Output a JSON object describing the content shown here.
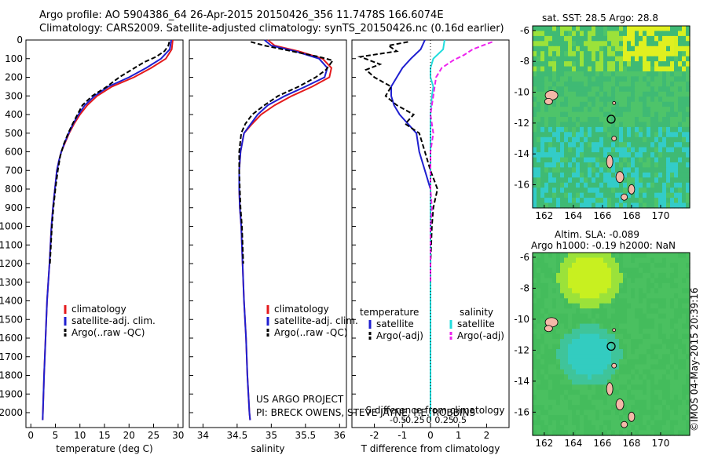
{
  "header": {
    "line1": "Argo profile: AO 5904386_64 26-Apr-2015 20150426_356 11.7478S 166.6074E",
    "line2": "Climatology: CARS2009. Satellite-adjusted climatology: synTS_20150426.nc (0.16d earlier)"
  },
  "stamp": "©IMOS 04-May-2015 20:39:16",
  "colors": {
    "clim": "#e41a1c",
    "sat": "#1f1fd0",
    "argo": "#000000",
    "sat_s": "#22dddd",
    "argo_s": "#ee22ee",
    "land": "#f4b8a8"
  },
  "chart_data": [
    {
      "id": "temperature",
      "type": "line",
      "xlabel": "temperature (deg C)",
      "ylabel": "",
      "xlim": [
        -1,
        31
      ],
      "ylim": [
        2080,
        0
      ],
      "xticks": [
        0,
        5,
        10,
        15,
        20,
        25,
        30
      ],
      "yticks": [
        0,
        100,
        200,
        300,
        400,
        500,
        600,
        700,
        800,
        900,
        1000,
        1100,
        1200,
        1300,
        1400,
        1500,
        1600,
        1700,
        1800,
        1900,
        2000
      ],
      "legend": [
        "climatology",
        "satellite-adj. clim.",
        "Argo(..raw -QC)"
      ],
      "series": [
        {
          "name": "climatology",
          "style": "clim",
          "points": [
            [
              28.9,
              0
            ],
            [
              28.7,
              50
            ],
            [
              27.5,
              100
            ],
            [
              24.5,
              150
            ],
            [
              21,
              200
            ],
            [
              16.5,
              250
            ],
            [
              13.5,
              300
            ],
            [
              11.5,
              350
            ],
            [
              10,
              400
            ],
            [
              8.8,
              450
            ],
            [
              7.8,
              500
            ],
            [
              7,
              550
            ],
            [
              6.2,
              600
            ],
            [
              5.7,
              650
            ],
            [
              5.3,
              700
            ],
            [
              4.9,
              800
            ],
            [
              4.5,
              900
            ],
            [
              4.2,
              1000
            ],
            [
              3.8,
              1200
            ],
            [
              3.3,
              1400
            ],
            [
              3,
              1600
            ],
            [
              2.7,
              1800
            ],
            [
              2.45,
              2000
            ],
            [
              2.4,
              2040
            ]
          ]
        },
        {
          "name": "satellite-adj. clim.",
          "style": "sat",
          "points": [
            [
              28.6,
              0
            ],
            [
              28.3,
              50
            ],
            [
              26.5,
              100
            ],
            [
              23.5,
              150
            ],
            [
              20,
              200
            ],
            [
              15.8,
              250
            ],
            [
              13,
              300
            ],
            [
              11,
              350
            ],
            [
              9.7,
              400
            ],
            [
              8.6,
              450
            ],
            [
              7.7,
              500
            ],
            [
              6.9,
              550
            ],
            [
              6.2,
              600
            ],
            [
              5.7,
              650
            ],
            [
              5.3,
              700
            ],
            [
              4.9,
              800
            ],
            [
              4.5,
              900
            ],
            [
              4.2,
              1000
            ],
            [
              3.8,
              1200
            ],
            [
              3.3,
              1400
            ],
            [
              3,
              1600
            ],
            [
              2.7,
              1800
            ],
            [
              2.45,
              2000
            ],
            [
              2.4,
              2040
            ]
          ]
        },
        {
          "name": "Argo(..raw -QC)",
          "style": "argo",
          "points": [
            [
              28.2,
              10
            ],
            [
              28,
              30
            ],
            [
              27.2,
              60
            ],
            [
              25.5,
              90
            ],
            [
              23,
              120
            ],
            [
              20.5,
              160
            ],
            [
              18,
              200
            ],
            [
              15.5,
              250
            ],
            [
              12.5,
              300
            ],
            [
              10.5,
              350
            ],
            [
              9.5,
              400
            ],
            [
              8.5,
              450
            ],
            [
              7.6,
              500
            ],
            [
              6.7,
              560
            ],
            [
              6,
              620
            ],
            [
              5.5,
              700
            ],
            [
              5,
              800
            ],
            [
              4.6,
              900
            ],
            [
              4.3,
              1000
            ],
            [
              3.9,
              1200
            ]
          ]
        }
      ]
    },
    {
      "id": "salinity",
      "type": "line",
      "xlabel": "salinity",
      "ylabel": "",
      "xlim": [
        33.8,
        36.1
      ],
      "ylim": [
        2080,
        0
      ],
      "xticks": [
        34,
        34.5,
        35,
        35.5,
        36
      ],
      "legend": [
        "climatology",
        "satellite-adj. clim.",
        "Argo(..raw -QC)"
      ],
      "annotation": [
        "US ARGO PROJECT",
        "PI: BRECK OWENS, STEVE JAYNE, P.E. ROBBINS"
      ],
      "series": [
        {
          "name": "climatology",
          "style": "clim",
          "points": [
            [
              34.95,
              0
            ],
            [
              35.05,
              30
            ],
            [
              35.4,
              60
            ],
            [
              35.75,
              100
            ],
            [
              35.88,
              150
            ],
            [
              35.85,
              200
            ],
            [
              35.6,
              250
            ],
            [
              35.3,
              300
            ],
            [
              35.05,
              350
            ],
            [
              34.85,
              400
            ],
            [
              34.72,
              450
            ],
            [
              34.6,
              500
            ],
            [
              34.55,
              600
            ],
            [
              34.53,
              700
            ],
            [
              34.53,
              800
            ],
            [
              34.54,
              900
            ],
            [
              34.56,
              1000
            ],
            [
              34.58,
              1200
            ],
            [
              34.6,
              1400
            ],
            [
              34.63,
              1600
            ],
            [
              34.65,
              1800
            ],
            [
              34.68,
              2000
            ],
            [
              34.69,
              2040
            ]
          ]
        },
        {
          "name": "satellite-adj. clim.",
          "style": "sat",
          "points": [
            [
              34.9,
              0
            ],
            [
              35,
              30
            ],
            [
              35.35,
              60
            ],
            [
              35.7,
              100
            ],
            [
              35.82,
              150
            ],
            [
              35.78,
              200
            ],
            [
              35.5,
              250
            ],
            [
              35.2,
              300
            ],
            [
              34.95,
              350
            ],
            [
              34.8,
              400
            ],
            [
              34.7,
              450
            ],
            [
              34.6,
              500
            ],
            [
              34.55,
              600
            ],
            [
              34.53,
              700
            ],
            [
              34.53,
              800
            ],
            [
              34.54,
              900
            ],
            [
              34.56,
              1000
            ],
            [
              34.58,
              1200
            ],
            [
              34.6,
              1400
            ],
            [
              34.63,
              1600
            ],
            [
              34.65,
              1800
            ],
            [
              34.68,
              2000
            ],
            [
              34.69,
              2040
            ]
          ]
        },
        {
          "name": "Argo(..raw -QC)",
          "style": "argo",
          "points": [
            [
              34.7,
              10
            ],
            [
              34.9,
              30
            ],
            [
              35.3,
              60
            ],
            [
              35.7,
              90
            ],
            [
              35.9,
              110
            ],
            [
              35.8,
              160
            ],
            [
              35.65,
              200
            ],
            [
              35.4,
              250
            ],
            [
              35.1,
              300
            ],
            [
              34.9,
              350
            ],
            [
              34.72,
              400
            ],
            [
              34.62,
              450
            ],
            [
              34.56,
              500
            ],
            [
              34.53,
              600
            ],
            [
              34.53,
              700
            ],
            [
              34.54,
              800
            ],
            [
              34.55,
              900
            ],
            [
              34.57,
              1000
            ],
            [
              34.59,
              1200
            ]
          ]
        }
      ]
    },
    {
      "id": "difference",
      "type": "line",
      "xlabel": "T difference from climatology",
      "xlabel_top": "S difference from climatology",
      "xlim": [
        -2.8,
        2.8
      ],
      "ylim": [
        2080,
        0
      ],
      "xticks": [
        -2,
        -1,
        0,
        1,
        2
      ],
      "xticks_s": [
        "-0.5",
        "-0.25",
        "0",
        "0.25",
        "0.5"
      ],
      "legend_t": {
        "title": "temperature",
        "entries": [
          "satellite",
          "Argo(-adj)"
        ]
      },
      "legend_s": {
        "title": "salinity",
        "entries": [
          "satellite",
          "Argo(-adj)"
        ]
      },
      "series": [
        {
          "name": "T satellite",
          "style": "sat",
          "points": [
            [
              -0.2,
              0
            ],
            [
              -0.35,
              50
            ],
            [
              -0.7,
              100
            ],
            [
              -1,
              150
            ],
            [
              -1.2,
              200
            ],
            [
              -1.4,
              250
            ],
            [
              -1.4,
              300
            ],
            [
              -1.3,
              350
            ],
            [
              -1.1,
              400
            ],
            [
              -0.8,
              450
            ],
            [
              -0.5,
              500
            ],
            [
              -0.4,
              600
            ],
            [
              -0.2,
              700
            ],
            [
              0,
              800
            ],
            [
              0,
              2040
            ]
          ]
        },
        {
          "name": "T Argo(-adj)",
          "style": "argo",
          "points": [
            [
              -0.8,
              10
            ],
            [
              -1.5,
              30
            ],
            [
              -1.2,
              60
            ],
            [
              -2.5,
              90
            ],
            [
              -1.8,
              130
            ],
            [
              -2.3,
              160
            ],
            [
              -2,
              200
            ],
            [
              -1.4,
              250
            ],
            [
              -1.6,
              300
            ],
            [
              -1.2,
              350
            ],
            [
              -0.6,
              400
            ],
            [
              -0.9,
              450
            ],
            [
              -0.4,
              500
            ],
            [
              -0.2,
              600
            ],
            [
              0,
              700
            ],
            [
              0.25,
              800
            ],
            [
              0.1,
              900
            ],
            [
              0.05,
              1000
            ],
            [
              0,
              1200
            ]
          ]
        },
        {
          "name": "S satellite",
          "style": "sat_s",
          "points": [
            [
              0.5,
              0
            ],
            [
              0.45,
              50
            ],
            [
              0.1,
              100
            ],
            [
              0,
              150
            ],
            [
              0,
              200
            ],
            [
              0.1,
              250
            ],
            [
              0.05,
              300
            ],
            [
              0,
              400
            ],
            [
              0,
              2040
            ]
          ]
        },
        {
          "name": "S Argo(-adj)",
          "style": "argo_s",
          "points": [
            [
              2.2,
              10
            ],
            [
              1.5,
              50
            ],
            [
              1.2,
              80
            ],
            [
              0.8,
              110
            ],
            [
              0.4,
              150
            ],
            [
              0.2,
              200
            ],
            [
              0.1,
              300
            ],
            [
              0,
              400
            ],
            [
              0.1,
              500
            ],
            [
              0,
              600
            ],
            [
              0,
              800
            ],
            [
              0.05,
              900
            ],
            [
              0,
              1000
            ],
            [
              0,
              1300
            ]
          ]
        }
      ]
    },
    {
      "id": "sst_map",
      "type": "heatmap",
      "title": "sat. SST: 28.5 Argo: 28.8",
      "xlim": [
        161.2,
        172
      ],
      "ylim": [
        -17.5,
        -5.7
      ],
      "xticks": [
        "162",
        "164",
        "166",
        "168",
        "170"
      ],
      "yticks": [
        "-6",
        "-8",
        "-10",
        "-12",
        "-14",
        "-16"
      ]
    },
    {
      "id": "sla_map",
      "type": "heatmap",
      "title": "Altim. SLA: -0.089",
      "subtitle": "Argo h1000: -0.19 h2000: NaN",
      "xlim": [
        161.2,
        172
      ],
      "ylim": [
        -17.5,
        -5.7
      ],
      "xticks": [
        "162",
        "164",
        "166",
        "168",
        "170"
      ],
      "yticks": [
        "-6",
        "-8",
        "-10",
        "-12",
        "-14",
        "-16"
      ]
    }
  ]
}
